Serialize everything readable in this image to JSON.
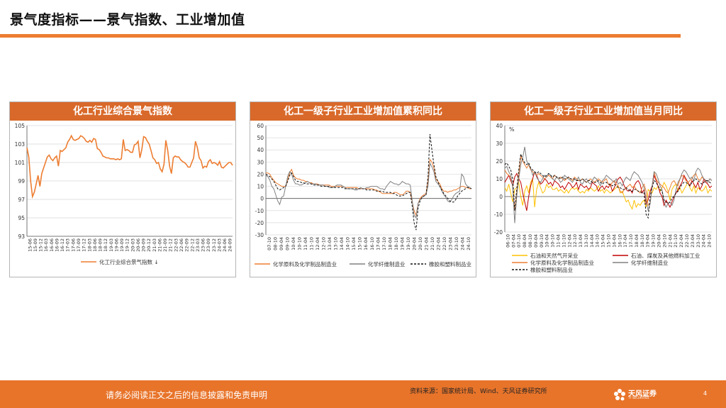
{
  "header": {
    "title": "景气度指标——景气指数、工业增加值"
  },
  "footer": {
    "disclaimer": "请务必阅读正文之后的信息披露和免责申明",
    "source": "资料来源：国家统计局、Wind、天风证券研究所",
    "logo_text": "天风证券",
    "logo_sub": "TF SECURITIES",
    "page": "4"
  },
  "panels": [
    {
      "title": "化工行业综合景气指数"
    },
    {
      "title": "化工一级子行业工业增加值累积同比"
    },
    {
      "title": "化工一级子行业工业增加值当月同比"
    }
  ],
  "chart_data": [
    {
      "type": "line",
      "title": "化工行业综合景气指数",
      "ylim": [
        93,
        105
      ],
      "yticks": [
        "93",
        "95",
        "97",
        "99",
        "101",
        "103",
        "105"
      ],
      "xticks": [
        "15-06",
        "15-09",
        "15-12",
        "16-03",
        "16-06",
        "16-09",
        "16-12",
        "17-03",
        "17-06",
        "17-09",
        "17-12",
        "18-03",
        "18-06",
        "18-09",
        "18-12",
        "19-03",
        "19-06",
        "19-09",
        "19-12",
        "20-03",
        "20-06",
        "20-09",
        "20-12",
        "21-03",
        "21-06",
        "21-09",
        "21-12",
        "22-03",
        "22-06",
        "22-09",
        "22-12",
        "23-03",
        "23-06",
        "23-09",
        "23-12",
        "24-03",
        "24-06",
        "24-09"
      ],
      "series": [
        {
          "name": "化工行业综合景气指数 ↓",
          "color": "#ED7D31",
          "values": [
            102.6,
            101.6,
            99.0,
            97.3,
            97.8,
            98.7,
            99.6,
            98.4,
            99.8,
            100.4,
            101.0,
            101.6,
            101.8,
            101.4,
            101.2,
            101.5,
            101.7,
            100.6,
            102.3,
            102.2,
            102.4,
            102.6,
            103.2,
            103.5,
            103.9,
            103.5,
            103.4,
            103.5,
            103.6,
            103.9,
            103.8,
            103.6,
            103.3,
            103.2,
            103.4,
            103.2,
            103.6,
            103.5,
            102.5,
            102.4,
            102.1,
            101.7,
            101.6,
            101.5,
            101.5,
            101.4,
            101.4,
            101.4,
            101.3,
            101.4,
            101.3,
            101.4,
            103.5,
            102.3,
            102.4,
            102.3,
            102.1,
            102.1,
            102.9,
            103.0,
            103.3,
            101.5,
            102.4,
            103.8,
            103.7,
            103.3,
            103.0,
            102.3,
            101.5,
            101.3,
            100.9,
            101.0,
            100.3,
            100.0,
            100.8,
            103.4,
            102.3,
            100.6,
            99.8,
            101.5,
            101.7,
            101.6,
            101.6,
            101.3,
            101.1,
            101.0,
            100.8,
            100.5,
            100.5,
            101.0,
            101.5,
            103.3,
            102.6,
            101.5,
            101.2,
            100.4,
            100.6,
            100.5,
            101.1,
            101.3,
            100.9,
            101.0,
            100.9,
            100.7,
            101.1,
            100.5,
            100.4,
            100.6,
            100.8,
            101.0,
            101.0,
            100.7
          ]
        }
      ]
    },
    {
      "type": "line",
      "title": "化工一级子行业工业增加值累积同比",
      "ylim": [
        -30,
        60
      ],
      "yticks": [
        "-30",
        "-20",
        "-10",
        "0",
        "10",
        "20",
        "30",
        "40",
        "50",
        "60"
      ],
      "xticks": [
        "07-10",
        "08-10",
        "09-04",
        "09-10",
        "10-04",
        "10-10",
        "11-04",
        "11-10",
        "12-04",
        "12-10",
        "13-04",
        "13-10",
        "14-04",
        "14-10",
        "15-04",
        "15-10",
        "16-04",
        "16-10",
        "17-04",
        "17-10",
        "18-04",
        "18-10",
        "19-04",
        "19-10",
        "20-04",
        "20-10",
        "21-04",
        "21-10",
        "22-04",
        "22-10",
        "23-04",
        "23-10",
        "24-04",
        "24-10"
      ],
      "series": [
        {
          "name": "化学原料及化学制品制造业",
          "color": "#ED7D31",
          "dash": "",
          "values": [
            21,
            21,
            20,
            17,
            15,
            13,
            12,
            11,
            10,
            10,
            10,
            15,
            21,
            24,
            19,
            17,
            16,
            16,
            15,
            15,
            14,
            14,
            13,
            13,
            12,
            12,
            12,
            11,
            11,
            11,
            11,
            11,
            11,
            10,
            10,
            10,
            10,
            10,
            10,
            10,
            9,
            9,
            9,
            9,
            9,
            9,
            9,
            8,
            8,
            8,
            8,
            8,
            8,
            8,
            8,
            7,
            7,
            6,
            5,
            4,
            4,
            4,
            4,
            4,
            4,
            5,
            5,
            4,
            3,
            3,
            4,
            6,
            6,
            5,
            -2,
            -10,
            -14,
            -4,
            0,
            2,
            3,
            4,
            15,
            32,
            30,
            25,
            16,
            14,
            12,
            8,
            6,
            6,
            5,
            6,
            6,
            7,
            7,
            8,
            9,
            10,
            10,
            9,
            9,
            8,
            8
          ]
        },
        {
          "name": "化学纤维制造业",
          "color": "#808080",
          "dash": "",
          "values": [
            19,
            18,
            15,
            10,
            8,
            3,
            -2,
            -5,
            1,
            2,
            10,
            18,
            22,
            20,
            15,
            12,
            12,
            11,
            11,
            12,
            13,
            14,
            13,
            12,
            12,
            12,
            11,
            11,
            11,
            11,
            10,
            10,
            9,
            9,
            9,
            10,
            11,
            11,
            11,
            10,
            9,
            8,
            8,
            8,
            8,
            7,
            7,
            8,
            9,
            8,
            8,
            9,
            9,
            10,
            10,
            10,
            10,
            9,
            8,
            8,
            7,
            10,
            12,
            14,
            13,
            12,
            12,
            11,
            12,
            14,
            13,
            12,
            12,
            11,
            -1,
            -14,
            -16,
            -4,
            -1,
            1,
            2,
            3,
            10,
            29,
            26,
            22,
            14,
            12,
            10,
            6,
            3,
            1,
            -2,
            -3,
            -1,
            2,
            4,
            5,
            6,
            20,
            18,
            12,
            10,
            9,
            8
          ]
        },
        {
          "name": "橡胶和塑料制品业",
          "color": "#111111",
          "dash": "3,2",
          "values": [
            20,
            19,
            18,
            16,
            14,
            11,
            8,
            7,
            8,
            9,
            10,
            14,
            19,
            21,
            18,
            15,
            14,
            14,
            13,
            13,
            12,
            12,
            12,
            12,
            11,
            11,
            11,
            11,
            10,
            10,
            10,
            10,
            10,
            9,
            9,
            9,
            9,
            9,
            9,
            9,
            8,
            8,
            8,
            8,
            8,
            8,
            8,
            8,
            8,
            8,
            8,
            7,
            7,
            7,
            7,
            7,
            6,
            6,
            6,
            6,
            5,
            5,
            5,
            5,
            4,
            4,
            3,
            2,
            2,
            2,
            3,
            4,
            5,
            5,
            -6,
            -20,
            -26,
            -8,
            -2,
            1,
            2,
            3,
            18,
            53,
            40,
            28,
            18,
            14,
            10,
            7,
            4,
            2,
            0,
            -2,
            -3,
            -3,
            -1,
            2,
            4,
            6,
            7,
            8,
            9,
            9,
            8
          ]
        }
      ]
    },
    {
      "type": "line",
      "title": "化工一级子行业工业增加值当月同比",
      "ylim": [
        -20,
        40
      ],
      "yticks": [
        "-20",
        "-10",
        "0",
        "10",
        "20",
        "30",
        "40"
      ],
      "ylabel": "%",
      "xticks": [
        "06-10",
        "07-04",
        "07-10",
        "08-04",
        "08-10",
        "09-04",
        "09-10",
        "10-04",
        "10-10",
        "11-04",
        "11-10",
        "12-04",
        "12-10",
        "13-04",
        "13-10",
        "14-04",
        "14-10",
        "15-04",
        "15-10",
        "16-04",
        "16-10",
        "17-04",
        "17-10",
        "18-04",
        "18-10",
        "19-04",
        "19-10",
        "20-04",
        "20-10",
        "21-04",
        "21-10",
        "22-04",
        "22-10",
        "23-04",
        "23-10",
        "24-04",
        "24-10"
      ],
      "series": [
        {
          "name": "石油和天然气开采业",
          "color": "#FFC000",
          "dash": "",
          "values": [
            5,
            3,
            7,
            2,
            -3,
            4,
            5,
            8,
            0,
            -5,
            3,
            6,
            2,
            8,
            10,
            -6,
            4,
            8,
            5,
            2,
            3,
            7,
            5,
            6,
            4,
            4,
            5,
            3,
            4,
            3,
            2,
            4,
            2,
            4,
            5,
            4,
            5,
            3,
            2,
            3,
            2,
            4,
            3,
            5,
            4,
            3,
            4,
            6,
            3,
            4,
            2,
            4,
            3,
            2,
            3,
            4,
            5,
            6,
            2,
            3,
            0,
            -3,
            -2,
            -5,
            -7,
            -2,
            -6,
            -4,
            -5,
            -3,
            -2,
            -6,
            4,
            3,
            2,
            5,
            4,
            6,
            3,
            5,
            8,
            6,
            3,
            -2,
            4,
            6,
            7,
            3,
            5,
            2,
            4,
            6,
            8,
            5,
            3,
            6,
            2,
            5,
            4,
            3,
            4,
            6,
            2,
            4,
            3
          ]
        },
        {
          "name": "石油、煤炭及其他燃料加工业",
          "color": "#C00000",
          "dash": "",
          "values": [
            8,
            10,
            12,
            9,
            6,
            11,
            13,
            10,
            8,
            2,
            -3,
            -8,
            0,
            6,
            10,
            14,
            12,
            9,
            7,
            8,
            10,
            9,
            7,
            8,
            6,
            9,
            8,
            7,
            5,
            6,
            4,
            6,
            8,
            7,
            5,
            6,
            8,
            4,
            7,
            6,
            5,
            6,
            4,
            5,
            8,
            7,
            6,
            3,
            5,
            6,
            4,
            6,
            5,
            7,
            3,
            5,
            8,
            10,
            11,
            9,
            6,
            4,
            3,
            4,
            2,
            6,
            8,
            9,
            7,
            2,
            4,
            -4,
            -2,
            3,
            6,
            12,
            9,
            6,
            2,
            0,
            -5,
            -2,
            -4,
            -6,
            -3,
            0,
            2,
            4,
            6,
            8,
            12,
            10,
            8,
            6,
            9,
            7,
            5,
            8,
            4,
            6,
            10,
            8,
            7,
            5,
            6
          ]
        },
        {
          "name": "化学原料及化学制品制造业",
          "color": "#ED7D31",
          "dash": "",
          "values": [
            15,
            13,
            12,
            11,
            6,
            -8,
            2,
            12,
            23,
            20,
            18,
            16,
            18,
            15,
            14,
            13,
            12,
            13,
            12,
            11,
            10,
            11,
            12,
            11,
            10,
            12,
            11,
            10,
            11,
            10,
            9,
            10,
            11,
            10,
            9,
            11,
            10,
            9,
            9,
            10,
            9,
            8,
            9,
            10,
            9,
            8,
            9,
            10,
            9,
            8,
            9,
            10,
            7,
            6,
            8,
            9,
            7,
            6,
            3,
            2,
            4,
            5,
            6,
            7,
            5,
            6,
            4,
            3,
            2,
            5,
            7,
            3,
            -5,
            -4,
            6,
            14,
            10,
            8,
            7,
            6,
            5,
            3,
            2,
            5,
            8,
            9,
            7,
            6,
            10,
            12,
            11,
            9,
            8,
            9,
            10,
            12,
            13,
            10,
            9,
            11,
            10,
            9,
            8,
            10,
            9
          ]
        },
        {
          "name": "化学纤维制造业",
          "color": "#808080",
          "dash": "",
          "values": [
            16,
            17,
            14,
            12,
            5,
            -15,
            0,
            10,
            18,
            22,
            28,
            20,
            18,
            16,
            12,
            14,
            11,
            9,
            8,
            10,
            12,
            11,
            13,
            12,
            10,
            9,
            11,
            10,
            8,
            9,
            12,
            11,
            10,
            9,
            8,
            10,
            9,
            11,
            8,
            7,
            9,
            10,
            8,
            7,
            9,
            11,
            10,
            8,
            6,
            9,
            10,
            12,
            11,
            10,
            9,
            8,
            10,
            7,
            8,
            6,
            9,
            11,
            10,
            9,
            12,
            14,
            13,
            12,
            10,
            8,
            5,
            -2,
            -8,
            -4,
            6,
            14,
            13,
            10,
            6,
            4,
            -3,
            -6,
            -4,
            -3,
            -5,
            -2,
            4,
            8,
            10,
            13,
            15,
            14,
            12,
            10,
            11,
            9,
            14,
            16,
            15,
            12,
            10,
            9,
            8,
            10,
            9
          ]
        },
        {
          "name": "橡胶和塑料制品业",
          "color": "#111111",
          "dash": "3,2",
          "values": [
            18,
            19,
            17,
            15,
            10,
            -8,
            4,
            15,
            24,
            21,
            19,
            18,
            19,
            16,
            15,
            14,
            13,
            14,
            13,
            12,
            11,
            12,
            13,
            12,
            11,
            12,
            11,
            11,
            10,
            11,
            10,
            10,
            11,
            10,
            10,
            10,
            9,
            9,
            9,
            10,
            9,
            8,
            9,
            9,
            8,
            8,
            8,
            9,
            8,
            7,
            8,
            8,
            7,
            7,
            6,
            7,
            6,
            5,
            5,
            4,
            4,
            5,
            4,
            3,
            3,
            4,
            4,
            3,
            3,
            2,
            2,
            -10,
            -12,
            0,
            5,
            9,
            8,
            6,
            4,
            3,
            -2,
            -3,
            -4,
            -3,
            -1,
            0,
            2,
            3,
            5,
            7,
            8,
            8,
            7,
            6,
            8,
            9,
            10,
            9,
            8,
            7,
            8,
            9,
            9,
            8,
            7
          ]
        }
      ]
    }
  ]
}
